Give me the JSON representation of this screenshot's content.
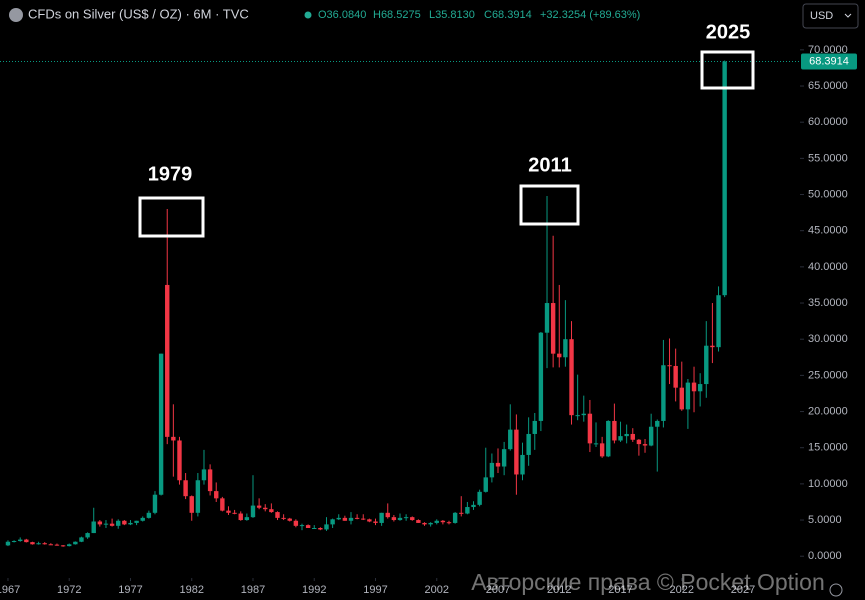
{
  "chart_data": {
    "type": "candlestick",
    "title": "CFDs on Silver (US$ / OZ) · 6M · TVC",
    "ohlc_header": {
      "open": "O36.0840",
      "high": "H68.5275",
      "low": "L35.8130",
      "close": "C68.3914",
      "change": "+32.3254 (+89.63%)"
    },
    "currency": "USD",
    "annotations": [
      "1979",
      "2011",
      "2025"
    ],
    "watermark": "Авторские права © Pocket Option",
    "up_color": "#089981",
    "down_color": "#f23645",
    "grid": false,
    "x": [
      1967,
      1967.5,
      1968,
      1968.5,
      1969,
      1969.5,
      1970,
      1970.5,
      1971,
      1971.5,
      1972,
      1972.5,
      1973,
      1973.5,
      1974,
      1974.5,
      1975,
      1975.5,
      1976,
      1976.5,
      1977,
      1977.5,
      1978,
      1978.5,
      1979,
      1979.5,
      1980,
      1980.5,
      1981,
      1981.5,
      1982,
      1982.5,
      1983,
      1983.5,
      1984,
      1984.5,
      1985,
      1985.5,
      1986,
      1986.5,
      1987,
      1987.5,
      1988,
      1988.5,
      1989,
      1989.5,
      1990,
      1990.5,
      1991,
      1991.5,
      1992,
      1992.5,
      1993,
      1993.5,
      1994,
      1994.5,
      1995,
      1995.5,
      1996,
      1996.5,
      1997,
      1997.5,
      1998,
      1998.5,
      1999,
      1999.5,
      2000,
      2000.5,
      2001,
      2001.5,
      2002,
      2002.5,
      2003,
      2003.5,
      2004,
      2004.5,
      2005,
      2005.5,
      2006,
      2006.5,
      2007,
      2007.5,
      2008,
      2008.5,
      2009,
      2009.5,
      2010,
      2010.5,
      2011,
      2011.5,
      2012,
      2012.5,
      2013,
      2013.5,
      2014,
      2014.5,
      2015,
      2015.5,
      2016,
      2016.5,
      2017,
      2017.5,
      2018,
      2018.5,
      2019,
      2019.5,
      2020,
      2020.5,
      2021,
      2021.5,
      2022,
      2022.5,
      2023,
      2023.5,
      2024,
      2024.5,
      2025,
      2025.5
    ],
    "open": [
      1.5,
      2.0,
      2.1,
      2.3,
      1.95,
      1.65,
      1.8,
      1.65,
      1.6,
      1.5,
      1.4,
      1.65,
      2.0,
      2.6,
      3.2,
      4.8,
      4.4,
      4.5,
      4.2,
      4.9,
      4.4,
      4.6,
      4.9,
      5.3,
      6.0,
      8.5,
      37.5,
      16.5,
      16.0,
      10.5,
      8.3,
      6.0,
      10.5,
      12.0,
      9.0,
      8.0,
      6.3,
      6.0,
      5.9,
      5.0,
      5.4,
      7.0,
      6.7,
      6.5,
      6.1,
      5.3,
      5.2,
      4.9,
      4.2,
      4.3,
      3.9,
      3.9,
      3.7,
      4.4,
      5.1,
      5.3,
      4.9,
      5.3,
      5.2,
      5.1,
      4.8,
      4.6,
      6.0,
      5.4,
      5.0,
      5.3,
      5.4,
      5.0,
      4.6,
      4.4,
      4.6,
      4.9,
      4.7,
      4.6,
      6.0,
      5.9,
      6.8,
      7.1,
      8.9,
      10.9,
      12.9,
      12.4,
      14.8,
      17.5,
      11.3,
      14.0,
      16.9,
      18.7,
      30.9,
      35.0,
      28.0,
      27.5,
      30.0,
      19.5,
      19.5,
      19.7,
      15.6,
      15.6,
      13.8,
      18.7,
      16.0,
      16.6,
      16.9,
      16.1,
      15.5,
      15.3,
      17.9,
      18.7,
      26.4,
      26.3,
      23.3,
      20.3,
      24.0,
      22.8,
      23.8,
      29.1,
      28.9,
      36.084
    ],
    "high": [
      2.2,
      2.2,
      2.6,
      2.4,
      2.0,
      2.0,
      1.95,
      1.8,
      1.75,
      1.55,
      1.75,
      2.05,
      2.7,
      3.3,
      6.7,
      5.0,
      5.0,
      5.2,
      5.1,
      5.0,
      5.0,
      4.9,
      5.5,
      6.3,
      9.0,
      28.0,
      48.0,
      21.0,
      16.5,
      11.5,
      8.4,
      11.5,
      14.7,
      12.7,
      10.2,
      8.2,
      6.9,
      6.4,
      6.2,
      5.9,
      11.2,
      8.0,
      7.2,
      7.3,
      6.2,
      5.8,
      5.3,
      5.1,
      4.5,
      4.4,
      4.3,
      4.0,
      5.4,
      5.2,
      5.8,
      5.6,
      6.1,
      5.8,
      5.8,
      5.2,
      5.2,
      6.0,
      7.3,
      5.7,
      5.9,
      5.8,
      5.5,
      5.1,
      4.7,
      4.7,
      5.1,
      5.0,
      4.9,
      6.1,
      8.3,
      7.5,
      7.6,
      9.2,
      15.0,
      14.2,
      14.9,
      15.8,
      21.0,
      19.6,
      15.7,
      19.2,
      19.8,
      31.0,
      49.8,
      44.3,
      37.5,
      35.4,
      32.5,
      25.1,
      22.2,
      21.6,
      18.5,
      16.5,
      18.8,
      21.1,
      18.6,
      18.2,
      17.7,
      16.2,
      16.2,
      19.7,
      18.9,
      29.9,
      30.1,
      28.7,
      26.9,
      24.5,
      26.2,
      25.3,
      32.5,
      35.0,
      37.3,
      68.5275
    ],
    "low": [
      1.4,
      1.9,
      2.0,
      1.9,
      1.6,
      1.6,
      1.6,
      1.55,
      1.45,
      1.3,
      1.35,
      1.6,
      1.95,
      2.4,
      3.2,
      4.1,
      3.9,
      4.1,
      3.8,
      4.3,
      4.3,
      4.3,
      4.8,
      5.2,
      5.8,
      8.4,
      15.5,
      11.0,
      9.9,
      7.9,
      4.9,
      5.5,
      9.9,
      8.4,
      7.5,
      6.2,
      5.7,
      5.8,
      4.9,
      4.9,
      5.3,
      6.5,
      6.2,
      6.0,
      5.0,
      5.0,
      4.8,
      4.0,
      3.6,
      3.9,
      3.8,
      3.6,
      3.5,
      3.9,
      5.0,
      4.9,
      4.4,
      5.1,
      5.0,
      4.7,
      4.3,
      4.2,
      5.2,
      4.8,
      4.9,
      4.9,
      4.9,
      4.6,
      4.2,
      4.1,
      4.4,
      4.4,
      4.4,
      4.5,
      5.5,
      5.8,
      6.4,
      6.9,
      8.8,
      10.2,
      11.5,
      11.2,
      14.6,
      8.5,
      10.5,
      12.5,
      14.7,
      17.3,
      26.0,
      26.1,
      26.1,
      26.2,
      18.2,
      18.8,
      18.6,
      14.4,
      15.1,
      13.6,
      13.7,
      15.6,
      15.8,
      15.6,
      15.8,
      13.9,
      14.3,
      15.2,
      11.7,
      17.8,
      23.8,
      21.4,
      20.1,
      17.6,
      19.9,
      20.7,
      21.9,
      26.7,
      28.3,
      35.813
    ],
    "close": [
      2.0,
      2.1,
      2.3,
      1.95,
      1.65,
      1.8,
      1.65,
      1.6,
      1.5,
      1.4,
      1.65,
      2.0,
      2.6,
      3.2,
      4.8,
      4.4,
      4.5,
      4.2,
      4.9,
      4.4,
      4.6,
      4.9,
      5.3,
      6.0,
      8.5,
      28.0,
      16.5,
      16.0,
      10.5,
      8.3,
      6.0,
      10.5,
      12.0,
      9.0,
      8.0,
      6.3,
      6.0,
      5.9,
      5.0,
      5.4,
      7.0,
      6.7,
      6.5,
      6.1,
      5.3,
      5.2,
      4.9,
      4.2,
      4.3,
      3.9,
      3.9,
      3.7,
      4.4,
      5.1,
      5.3,
      4.9,
      5.3,
      5.2,
      5.1,
      4.8,
      4.6,
      6.0,
      5.4,
      5.0,
      5.3,
      5.4,
      5.0,
      4.6,
      4.4,
      4.6,
      4.9,
      4.7,
      4.6,
      6.0,
      5.9,
      6.8,
      7.1,
      8.9,
      10.9,
      12.9,
      12.4,
      14.8,
      17.5,
      11.3,
      14.0,
      16.9,
      18.7,
      30.9,
      35.0,
      28.0,
      27.5,
      30.0,
      19.5,
      19.5,
      19.7,
      15.6,
      15.6,
      13.8,
      18.7,
      16.0,
      16.6,
      16.9,
      16.1,
      15.5,
      15.3,
      17.9,
      18.7,
      26.4,
      26.3,
      23.3,
      20.3,
      24.0,
      22.8,
      23.8,
      29.1,
      28.9,
      36.08,
      68.3914
    ],
    "xlim": [
      1966.35,
      2031.65
    ],
    "xticks": [
      1967,
      1972,
      1977,
      1982,
      1987,
      1992,
      1997,
      2002,
      2007,
      2012,
      2017,
      2022,
      2027
    ],
    "ylim": [
      -5.5,
      71.5
    ],
    "yticks": [
      {
        "value": 0,
        "label": "0.0000"
      },
      {
        "value": 5,
        "label": "5.0000"
      },
      {
        "value": 10,
        "label": "10.0000"
      },
      {
        "value": 15,
        "label": "15.0000"
      },
      {
        "value": 20,
        "label": "20.0000"
      },
      {
        "value": 25,
        "label": "25.0000"
      },
      {
        "value": 30,
        "label": "30.0000"
      },
      {
        "value": 35,
        "label": "35.0000"
      },
      {
        "value": 40,
        "label": "40.0000"
      },
      {
        "value": 45,
        "label": "45.0000"
      },
      {
        "value": 50,
        "label": "50.0000"
      },
      {
        "value": 55,
        "label": "55.0000"
      },
      {
        "value": 60,
        "label": "60.0000"
      },
      {
        "value": 65,
        "label": "65.0000"
      },
      {
        "value": 70,
        "label": "70.0000"
      }
    ]
  }
}
